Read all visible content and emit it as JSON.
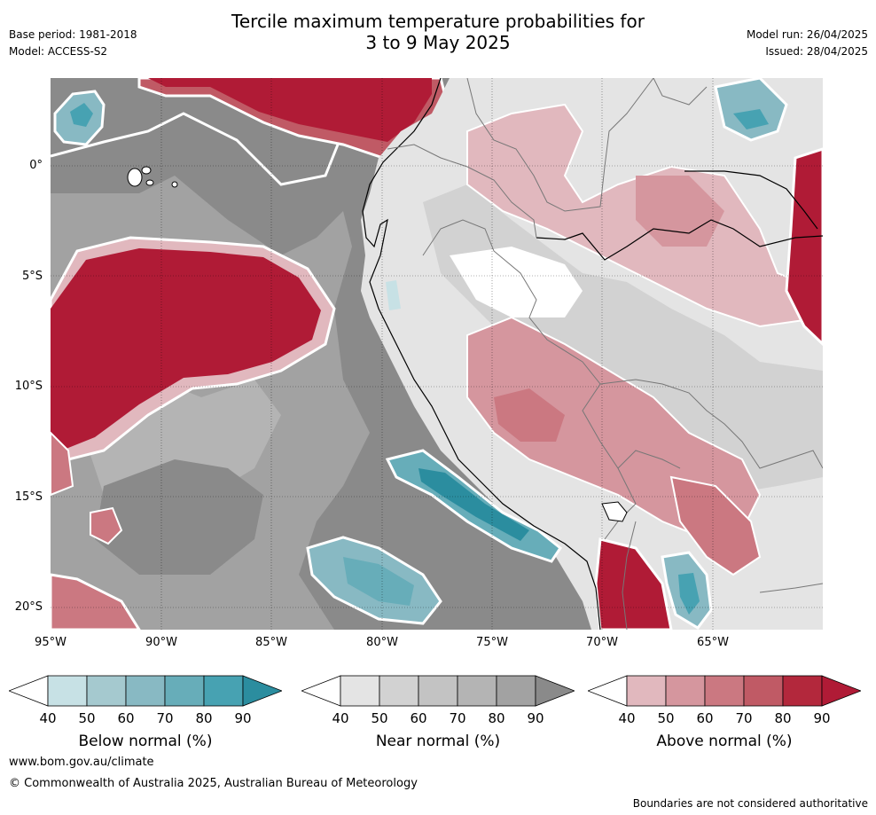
{
  "header": {
    "title_line1": "Tercile maximum temperature probabilities for",
    "title_line2": "3 to 9 May 2025",
    "base_period": "Base period: 1981-2018",
    "model": "Model: ACCESS-S2",
    "model_run": "Model run: 26/04/2025",
    "issued": "Issued: 28/04/2025"
  },
  "map": {
    "lat_labels": [
      "0°",
      "5°S",
      "10°S",
      "15°S",
      "20°S"
    ],
    "lon_labels": [
      "95°W",
      "90°W",
      "85°W",
      "80°W",
      "75°W",
      "70°W",
      "65°W"
    ],
    "colors": {
      "ocean_base": "#8a8a8a",
      "land_base": "#e4e4e4",
      "coast": "#000000",
      "border": "#777777"
    }
  },
  "colorbars": [
    {
      "title": "Below normal (%)",
      "ticks": [
        "40",
        "50",
        "60",
        "70",
        "80",
        "90"
      ],
      "colors": [
        "#ffffff",
        "#c7e1e5",
        "#a5c9cf",
        "#88b9c3",
        "#67adb9",
        "#47a2b2",
        "#2b8d9f"
      ]
    },
    {
      "title": "Near normal (%)",
      "ticks": [
        "40",
        "50",
        "60",
        "70",
        "80",
        "90"
      ],
      "colors": [
        "#ffffff",
        "#e4e4e4",
        "#d2d2d2",
        "#c3c3c3",
        "#b4b4b4",
        "#a2a2a2",
        "#8a8a8a"
      ]
    },
    {
      "title": "Above normal (%)",
      "ticks": [
        "40",
        "50",
        "60",
        "70",
        "80",
        "90"
      ],
      "colors": [
        "#ffffff",
        "#e1b8be",
        "#d5969e",
        "#cb7881",
        "#c05a65",
        "#b3283c",
        "#b01b36"
      ]
    }
  ],
  "footer": {
    "website": "www.bom.gov.au/climate",
    "copyright": "© Commonwealth of Australia 2025, Australian Bureau of Meteorology",
    "disclaimer": "Boundaries are not considered authoritative"
  }
}
